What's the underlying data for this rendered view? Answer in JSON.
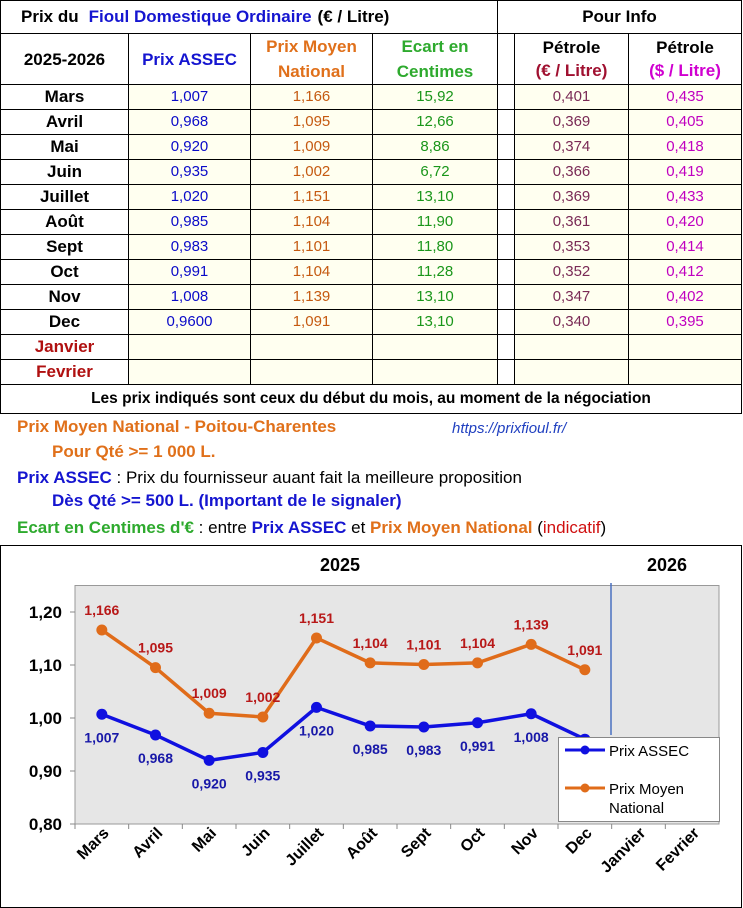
{
  "title": [
    "Prix du",
    "Fioul Domestique Ordinaire",
    "(€ / Litre)"
  ],
  "info_title": "Pour Info",
  "table": {
    "header": [
      "2025-2026",
      "Prix ASSEC",
      "Prix Moyen National",
      "Ecart en Centimes"
    ],
    "info_header": [
      [
        "Pétrole",
        "(€ / Litre)"
      ],
      [
        "Pétrole",
        "($ / Litre)"
      ]
    ],
    "rows": [
      [
        "Mars",
        "1,007",
        "1,166",
        "15,92",
        "0,401",
        "0,435"
      ],
      [
        "Avril",
        "0,968",
        "1,095",
        "12,66",
        "0,369",
        "0,405"
      ],
      [
        "Mai",
        "0,920",
        "1,009",
        "8,86",
        "0,374",
        "0,418"
      ],
      [
        "Juin",
        "0,935",
        "1,002",
        "6,72",
        "0,366",
        "0,419"
      ],
      [
        "Juillet",
        "1,020",
        "1,151",
        "13,10",
        "0,369",
        "0,433"
      ],
      [
        "Août",
        "0,985",
        "1,104",
        "11,90",
        "0,361",
        "0,420"
      ],
      [
        "Sept",
        "0,983",
        "1,101",
        "11,80",
        "0,353",
        "0,414"
      ],
      [
        "Oct",
        "0,991",
        "1,104",
        "11,28",
        "0,352",
        "0,412"
      ],
      [
        "Nov",
        "1,008",
        "1,139",
        "13,10",
        "0,347",
        "0,402"
      ],
      [
        "Dec",
        "0,9600",
        "1,091",
        "13,10",
        "0,340",
        "0,395"
      ],
      [
        "Janvier"
      ],
      [
        "Fevrier"
      ]
    ],
    "footnote": "Les prix indiqués sont ceux du début du mois, au moment de la négociation"
  },
  "notes": {
    "line1": [
      "Prix Moyen National - Poitou-Charentes",
      "https://prixfioul.fr/"
    ],
    "line2": "Pour Qté >= 1 000 L.",
    "line3": [
      "Prix ASSEC",
      " : Prix du fournisseur auant fait la meilleure proposition"
    ],
    "line4": "Dès Qté >= 500 L. (Important de le signaler)",
    "line5": [
      "Ecart en Centimes d'€",
      " : entre ",
      "Prix ASSEC",
      " et ",
      "Prix Moyen National",
      " (",
      "indicatif",
      ")"
    ]
  },
  "chart_data": {
    "type": "line",
    "annotations": [
      "2025",
      "2026"
    ],
    "categories": [
      "Mars",
      "Avril",
      "Mai",
      "Juin",
      "Juillet",
      "Août",
      "Sept",
      "Oct",
      "Nov",
      "Dec",
      "Janvier",
      "Fevrier"
    ],
    "series": [
      {
        "name": "Prix ASSEC",
        "color": "#1010e0",
        "label_color": "#1818a8",
        "values": [
          1.007,
          0.968,
          0.92,
          0.935,
          1.02,
          0.985,
          0.983,
          0.991,
          1.008,
          0.96,
          null,
          null
        ],
        "value_labels": [
          "1,007",
          "0,968",
          "0,920",
          "0,935",
          "1,020",
          "0,985",
          "0,983",
          "0,991",
          "1,008",
          null,
          null,
          null
        ]
      },
      {
        "name": "Prix Moyen National",
        "color": "#e06c1a",
        "label_color": "#b81818",
        "values": [
          1.166,
          1.095,
          1.009,
          1.002,
          1.151,
          1.104,
          1.101,
          1.104,
          1.139,
          1.091,
          null,
          null
        ],
        "value_labels": [
          "1,166",
          "1,095",
          "1,009",
          "1,002",
          "1,151",
          "1,104",
          "1,101",
          "1,104",
          "1,139",
          "1,091",
          null,
          null
        ]
      }
    ],
    "ylim": [
      0.8,
      1.25
    ],
    "yticks": [
      {
        "value": 0.8,
        "label": "0,80"
      },
      {
        "value": 0.9,
        "label": "0,90"
      },
      {
        "value": 1.0,
        "label": "1,00"
      },
      {
        "value": 1.1,
        "label": "1,10"
      },
      {
        "value": 1.2,
        "label": "1,20"
      }
    ],
    "grid": false
  }
}
